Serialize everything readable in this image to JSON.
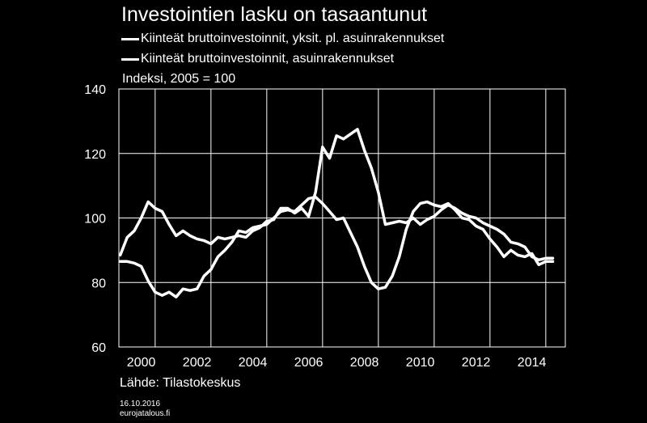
{
  "title": "Investointien lasku on tasaantunut",
  "source": "Lähde: Tilastokeskus",
  "date": "16.10.2016",
  "site": "eurojatalous.fi",
  "colors": {
    "background": "#000000",
    "foreground": "#ffffff",
    "grid": "#ffffff"
  },
  "chart_data": {
    "type": "line",
    "title": "Investointien lasku on tasaantunut",
    "ylabel": "Indeksi, 2005 = 100",
    "xlabel": "",
    "xlim": [
      1999.7,
      2015.7
    ],
    "ylim": [
      60,
      140
    ],
    "x_ticks": [
      2000,
      2002,
      2004,
      2006,
      2008,
      2010,
      2012,
      2014
    ],
    "y_ticks": [
      60,
      80,
      100,
      120,
      140
    ],
    "grid": true,
    "legend_position": "top",
    "series": [
      {
        "name": "Kiinteät bruttoinvestoinnit, yksit. pl. asuinrakennukset",
        "color": "#ffffff",
        "points": [
          [
            1999.75,
            88.5
          ],
          [
            2000.0,
            94.0
          ],
          [
            2000.25,
            96.0
          ],
          [
            2000.5,
            100.0
          ],
          [
            2000.75,
            105.0
          ],
          [
            2001.0,
            103.0
          ],
          [
            2001.25,
            102.0
          ],
          [
            2001.5,
            98.0
          ],
          [
            2001.75,
            94.5
          ],
          [
            2002.0,
            96.0
          ],
          [
            2002.25,
            94.5
          ],
          [
            2002.5,
            93.5
          ],
          [
            2002.75,
            93.0
          ],
          [
            2003.0,
            92.0
          ],
          [
            2003.25,
            94.0
          ],
          [
            2003.5,
            93.5
          ],
          [
            2003.75,
            94.0
          ],
          [
            2004.0,
            94.5
          ],
          [
            2004.25,
            94.0
          ],
          [
            2004.5,
            96.0
          ],
          [
            2004.75,
            97.0
          ],
          [
            2005.0,
            99.0
          ],
          [
            2005.25,
            99.5
          ],
          [
            2005.5,
            103.0
          ],
          [
            2005.75,
            103.0
          ],
          [
            2006.0,
            101.5
          ],
          [
            2006.25,
            103.0
          ],
          [
            2006.5,
            100.5
          ],
          [
            2006.75,
            108.0
          ],
          [
            2007.0,
            122.0
          ],
          [
            2007.25,
            118.5
          ],
          [
            2007.5,
            125.5
          ],
          [
            2007.75,
            124.5
          ],
          [
            2008.0,
            126.0
          ],
          [
            2008.25,
            127.5
          ],
          [
            2008.5,
            121.0
          ],
          [
            2008.75,
            115.5
          ],
          [
            2009.0,
            108.0
          ],
          [
            2009.25,
            98.0
          ],
          [
            2009.5,
            98.5
          ],
          [
            2009.75,
            99.0
          ],
          [
            2010.0,
            98.5
          ],
          [
            2010.25,
            100.0
          ],
          [
            2010.5,
            98.0
          ],
          [
            2010.75,
            99.5
          ],
          [
            2011.0,
            100.5
          ],
          [
            2011.25,
            102.5
          ],
          [
            2011.5,
            104.0
          ],
          [
            2011.75,
            103.0
          ],
          [
            2012.0,
            101.5
          ],
          [
            2012.25,
            100.5
          ],
          [
            2012.5,
            100.0
          ],
          [
            2012.75,
            98.5
          ],
          [
            2013.0,
            97.5
          ],
          [
            2013.25,
            96.5
          ],
          [
            2013.5,
            95.0
          ],
          [
            2013.75,
            92.5
          ],
          [
            2014.0,
            92.0
          ],
          [
            2014.25,
            91.0
          ],
          [
            2014.5,
            88.0
          ],
          [
            2014.75,
            87.0
          ],
          [
            2015.0,
            87.5
          ],
          [
            2015.25,
            87.5
          ]
        ]
      },
      {
        "name": "Kiinteät bruttoinvestoinnit, asuinrakennukset",
        "color": "#ffffff",
        "points": [
          [
            1999.75,
            86.5
          ],
          [
            2000.0,
            86.5
          ],
          [
            2000.25,
            86.0
          ],
          [
            2000.5,
            85.0
          ],
          [
            2000.75,
            80.5
          ],
          [
            2001.0,
            77.0
          ],
          [
            2001.25,
            76.0
          ],
          [
            2001.5,
            77.0
          ],
          [
            2001.75,
            75.5
          ],
          [
            2002.0,
            78.0
          ],
          [
            2002.25,
            77.5
          ],
          [
            2002.5,
            78.0
          ],
          [
            2002.75,
            82.0
          ],
          [
            2003.0,
            84.0
          ],
          [
            2003.25,
            88.0
          ],
          [
            2003.5,
            90.0
          ],
          [
            2003.75,
            92.5
          ],
          [
            2004.0,
            96.0
          ],
          [
            2004.25,
            95.5
          ],
          [
            2004.5,
            97.0
          ],
          [
            2004.75,
            97.5
          ],
          [
            2005.0,
            98.0
          ],
          [
            2005.25,
            100.0
          ],
          [
            2005.5,
            102.0
          ],
          [
            2005.75,
            102.5
          ],
          [
            2006.0,
            102.0
          ],
          [
            2006.25,
            104.0
          ],
          [
            2006.5,
            106.0
          ],
          [
            2006.75,
            106.5
          ],
          [
            2007.0,
            104.5
          ],
          [
            2007.25,
            102.0
          ],
          [
            2007.5,
            99.5
          ],
          [
            2007.75,
            100.0
          ],
          [
            2008.0,
            95.5
          ],
          [
            2008.25,
            91.0
          ],
          [
            2008.5,
            85.0
          ],
          [
            2008.75,
            80.0
          ],
          [
            2009.0,
            78.0
          ],
          [
            2009.25,
            78.5
          ],
          [
            2009.5,
            82.0
          ],
          [
            2009.75,
            88.0
          ],
          [
            2010.0,
            96.5
          ],
          [
            2010.25,
            102.0
          ],
          [
            2010.5,
            104.5
          ],
          [
            2010.75,
            105.0
          ],
          [
            2011.0,
            104.0
          ],
          [
            2011.25,
            103.5
          ],
          [
            2011.5,
            104.5
          ],
          [
            2011.75,
            102.5
          ],
          [
            2012.0,
            100.0
          ],
          [
            2012.25,
            99.5
          ],
          [
            2012.5,
            97.5
          ],
          [
            2012.75,
            96.5
          ],
          [
            2013.0,
            93.5
          ],
          [
            2013.25,
            91.0
          ],
          [
            2013.5,
            88.0
          ],
          [
            2013.75,
            90.0
          ],
          [
            2014.0,
            88.5
          ],
          [
            2014.25,
            88.0
          ],
          [
            2014.5,
            89.0
          ],
          [
            2014.75,
            85.5
          ],
          [
            2015.0,
            86.5
          ],
          [
            2015.25,
            86.5
          ]
        ]
      }
    ]
  }
}
